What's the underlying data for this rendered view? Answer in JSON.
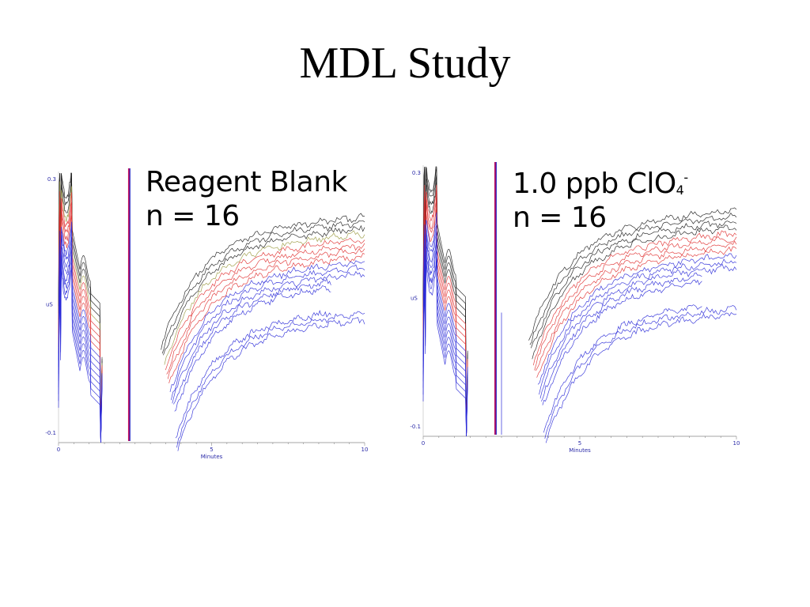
{
  "title": "MDL Study",
  "colors": {
    "black": "#1a1a1a",
    "red": "#e03030",
    "blue": "#2a2ad8",
    "olive": "#9a9a40",
    "axis": "#2a2aa8"
  },
  "chart_data": [
    {
      "type": "line",
      "annotation_line1": "Reagent Blank",
      "annotation_line2": "n = 16",
      "xlabel": "Minutes",
      "ylabel": "uS",
      "xlim": [
        0,
        10
      ],
      "ylim": [
        -0.1,
        0.3
      ],
      "x_ticks": [
        "0",
        "5",
        "10"
      ],
      "y_ticks": [
        "0.3",
        "-0.1"
      ],
      "series_count": 16,
      "series_colors": [
        "black",
        "black",
        "black",
        "olive",
        "red",
        "red",
        "red",
        "red",
        "blue",
        "blue",
        "blue",
        "blue",
        "blue",
        "blue",
        "blue",
        "blue"
      ]
    },
    {
      "type": "line",
      "annotation_line1": "1.0 ppb ClO",
      "annotation_sub": "4",
      "annotation_sup": "-",
      "annotation_line2": "n = 16",
      "xlabel": "Minutes",
      "ylabel": "uS",
      "xlim": [
        0,
        10
      ],
      "ylim": [
        -0.1,
        0.3
      ],
      "x_ticks": [
        "0",
        "5",
        "10"
      ],
      "y_ticks": [
        "0.3",
        "-0.1"
      ],
      "series_count": 16,
      "series_colors": [
        "black",
        "black",
        "black",
        "black",
        "red",
        "red",
        "red",
        "red",
        "blue",
        "blue",
        "blue",
        "blue",
        "blue",
        "blue",
        "blue",
        "blue"
      ]
    }
  ]
}
